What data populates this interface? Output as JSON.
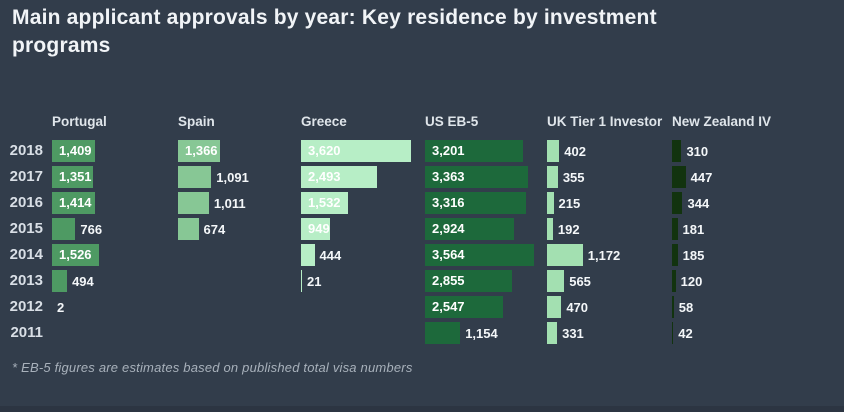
{
  "title": "Main applicant approvals by year: Key residence by investment programs",
  "footnote": "* EB-5 figures are estimates based on published total visa numbers",
  "colors": {
    "background": "#323d4b",
    "footer_strip": "#2c3542",
    "title_text": "#f1f4f7",
    "year_text": "#d9dfe6",
    "header_text": "#dfe5ea",
    "value_text": "#f4f7f9"
  },
  "chart_data": {
    "type": "bar",
    "orientation": "horizontal",
    "title": "Main applicant approvals by year: Key residence by investment programs",
    "categories": [
      "2018",
      "2017",
      "2016",
      "2015",
      "2014",
      "2013",
      "2012",
      "2011"
    ],
    "legend_position": "column headers",
    "grid": false,
    "series": [
      {
        "name": "Portugal",
        "color": "#4e9a63",
        "values": [
          1409,
          1351,
          1414,
          766,
          1526,
          494,
          2,
          null
        ],
        "label_inside": [
          true,
          true,
          true,
          false,
          true,
          false,
          false,
          null
        ]
      },
      {
        "name": "Spain",
        "color": "#87c795",
        "values": [
          1366,
          1091,
          1011,
          674,
          null,
          null,
          null,
          null
        ],
        "label_inside": [
          true,
          false,
          false,
          false,
          null,
          null,
          null,
          null
        ]
      },
      {
        "name": "Greece",
        "color": "#b7eec6",
        "values": [
          3620,
          2493,
          1532,
          949,
          444,
          21,
          null,
          null
        ],
        "label_inside": [
          true,
          true,
          true,
          true,
          false,
          false,
          null,
          null
        ]
      },
      {
        "name": "US EB-5",
        "color": "#1d693b",
        "values": [
          3201,
          3363,
          3316,
          2924,
          3564,
          2855,
          2547,
          1154
        ],
        "label_inside": [
          true,
          true,
          true,
          true,
          true,
          true,
          true,
          false
        ]
      },
      {
        "name": "UK Tier 1 Investor",
        "color": "#a3e0b1",
        "values": [
          402,
          355,
          215,
          192,
          1172,
          565,
          470,
          331
        ],
        "label_inside": [
          false,
          false,
          false,
          false,
          false,
          false,
          false,
          false
        ]
      },
      {
        "name": "New Zealand IV",
        "color": "#12330f",
        "values": [
          310,
          447,
          344,
          181,
          185,
          120,
          58,
          42
        ],
        "label_inside": [
          false,
          false,
          false,
          false,
          false,
          false,
          false,
          false
        ]
      }
    ]
  }
}
